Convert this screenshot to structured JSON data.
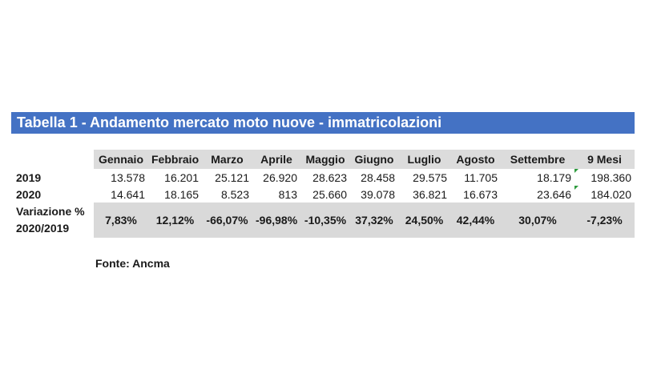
{
  "title": "Tabella 1 - Andamento mercato moto nuove - immatricolazioni",
  "columns": [
    "Gennaio",
    "Febbraio",
    "Marzo",
    "Aprile",
    "Maggio",
    "Giugno",
    "Luglio",
    "Agosto",
    "Settembre",
    "9 Mesi"
  ],
  "rows": [
    {
      "label": "2019",
      "values": [
        "13.578",
        "16.201",
        "25.121",
        "26.920",
        "28.623",
        "28.458",
        "29.575",
        "11.705",
        "18.179",
        "198.360"
      ]
    },
    {
      "label": "2020",
      "values": [
        "14.641",
        "18.165",
        "8.523",
        "813",
        "25.660",
        "39.078",
        "36.821",
        "16.673",
        "23.646",
        "184.020"
      ]
    }
  ],
  "variation": {
    "label_line1": "Variazione %",
    "label_line2": "2020/2019",
    "values": [
      "7,83%",
      "12,12%",
      "-66,07%",
      "-96,98%",
      "-10,35%",
      "37,32%",
      "24,50%",
      "42,44%",
      "30,07%",
      "-7,23%"
    ]
  },
  "source": "Fonte: Ancma",
  "colors": {
    "title_bg": "#4472c4",
    "header_shade": "#dcdcdc",
    "variation_shade": "#d9d9d9",
    "cell_marker": "#2e9b3e"
  }
}
